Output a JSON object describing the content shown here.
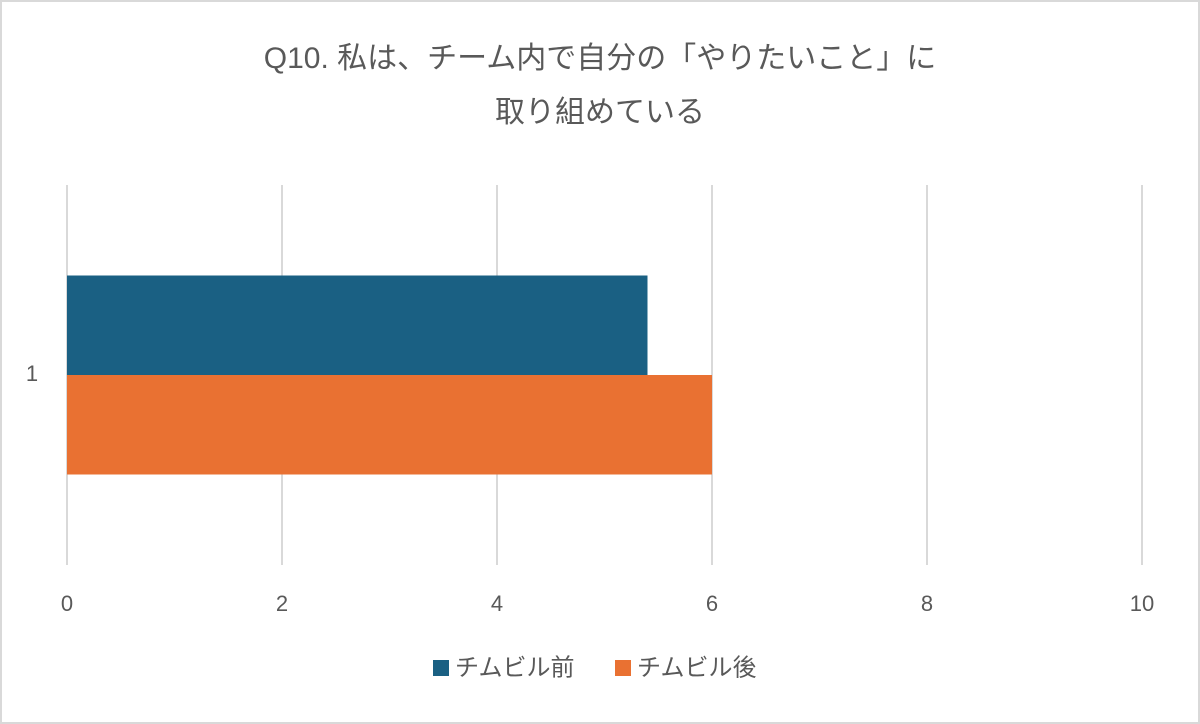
{
  "chart_data": {
    "type": "barh",
    "title": [
      "Q10. 私は、チーム内で自分の「やりたいこと」に",
      "取り組めている"
    ],
    "categories": [
      "1"
    ],
    "series": [
      {
        "name": "チムビル前",
        "color": "#1a6083",
        "values": [
          5.4
        ]
      },
      {
        "name": "チムビル後",
        "color": "#e97132",
        "values": [
          6
        ]
      }
    ],
    "xlim": [
      0,
      10
    ],
    "xticks": [
      0,
      2,
      4,
      6,
      8,
      10
    ],
    "grid": true,
    "legend": "bottom"
  }
}
